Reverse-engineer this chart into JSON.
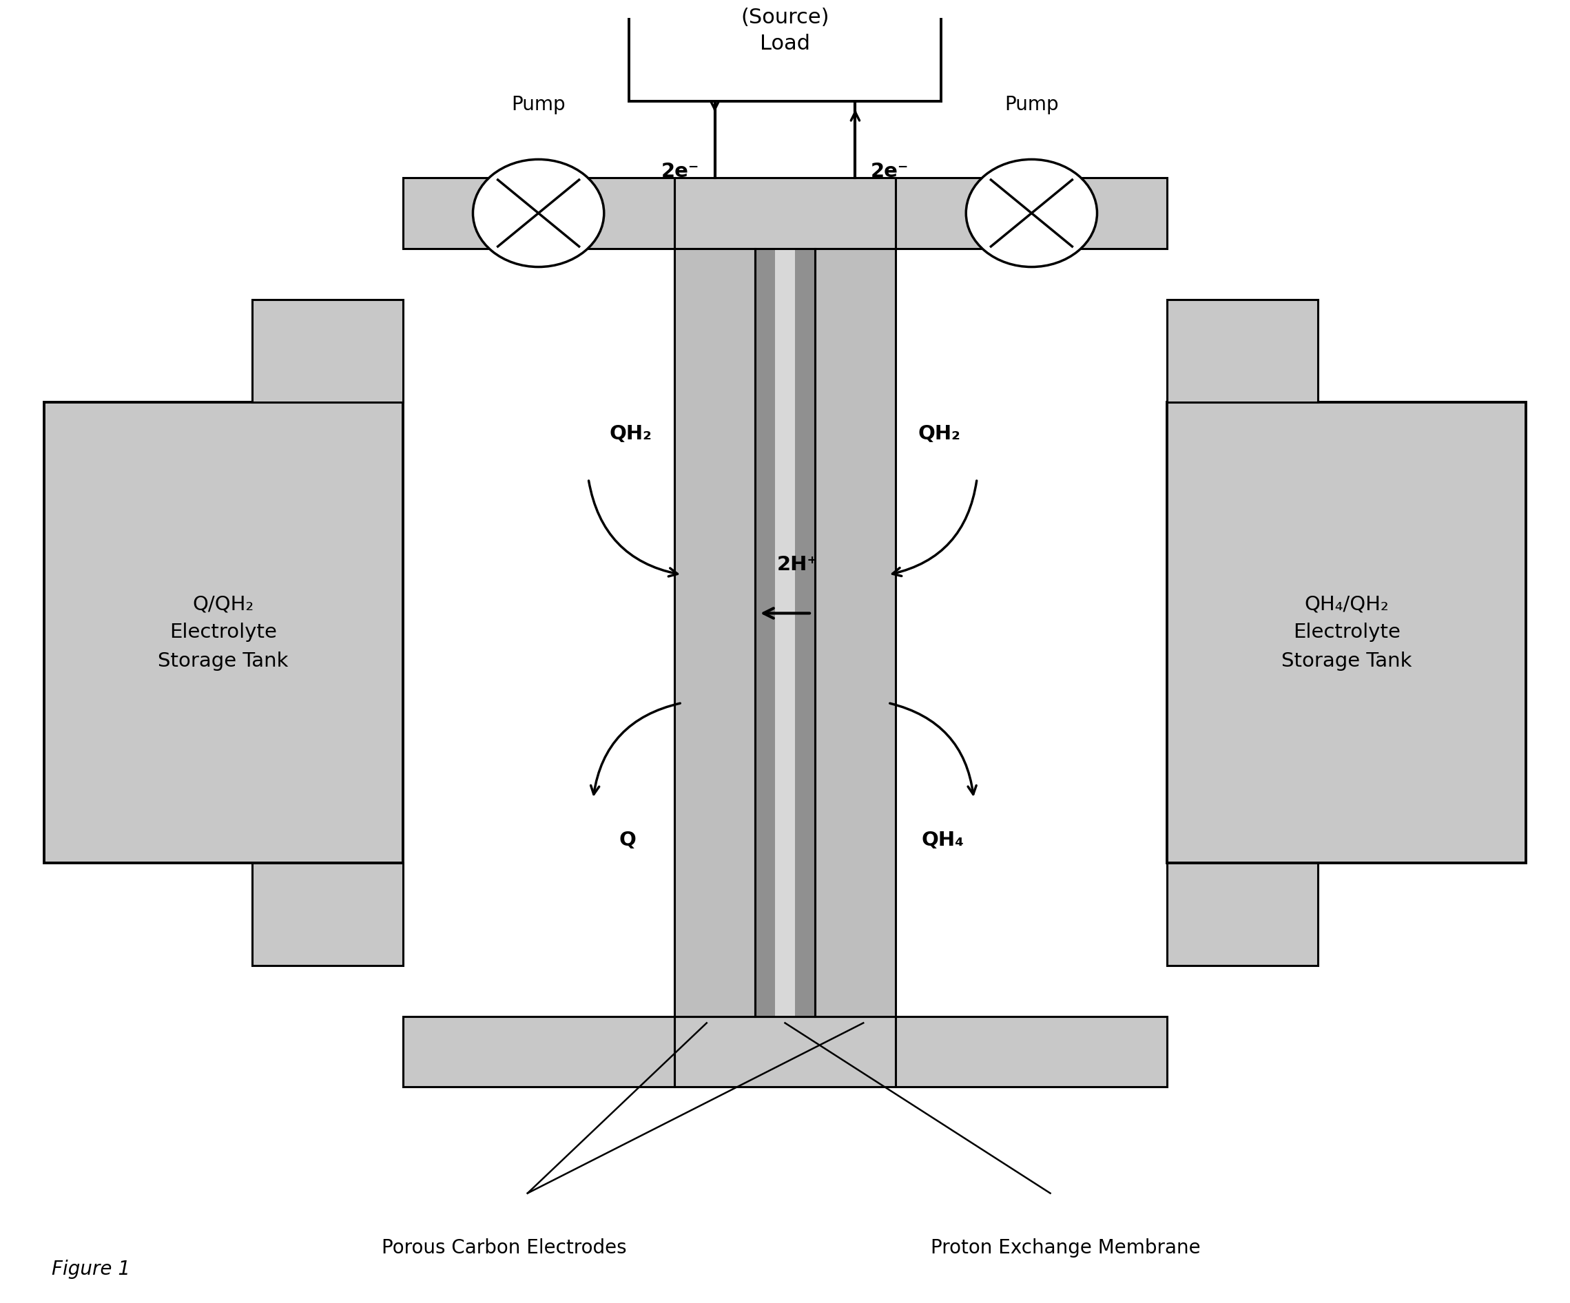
{
  "fig_width": 22.79,
  "fig_height": 18.92,
  "bg_color": "#ffffff",
  "tank_fill": "#c8c8c8",
  "tank_edge": "#000000",
  "elec_fill": "#bebebe",
  "mem_fill_dark": "#909090",
  "mem_fill_light": "#d8d8d8",
  "box_fill": "#ffffff",
  "black": "#000000",
  "title_text": "(Source)\nLoad",
  "figure1_text": "Figure 1",
  "left_tank_label": "Q/QH₂\nElectrolyte\nStorage Tank",
  "right_tank_label": "QH₄/QH₂\nElectrolyte\nStorage Tank",
  "left_pump_label": "Pump",
  "right_pump_label": "Pump",
  "label_porous": "Porous Carbon Electrodes",
  "label_membrane": "Proton Exchange Membrane",
  "label_2e_left": "2e⁻",
  "label_2e_right": "2e⁻",
  "label_2H": "2H⁺",
  "label_QH2_left": "QH₂",
  "label_QH2_right": "QH₂",
  "label_Q": "Q",
  "label_QH4": "QH₄"
}
